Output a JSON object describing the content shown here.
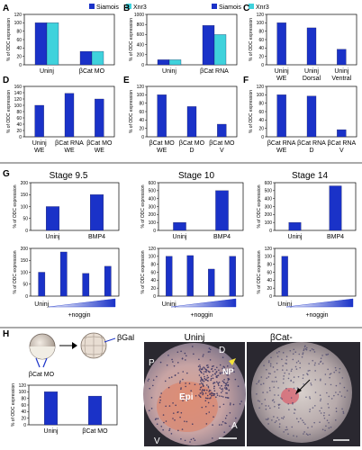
{
  "legend": {
    "siamois": "Siamois",
    "xnr3": "Xnr3",
    "color_siamois": "#1a32c8",
    "color_xnr3": "#3fd2dc"
  },
  "ylabel": "% of ODC expression",
  "ylabel_h": "% of ODC expression",
  "chart_data": [
    {
      "id": "A",
      "type": "bar",
      "title": "A",
      "ylabel": "% of ODC expression",
      "ylim": [
        0,
        120
      ],
      "yticks": [
        0,
        20,
        40,
        60,
        80,
        100,
        120
      ],
      "categories": [
        "Uninj",
        "βCat MO"
      ],
      "series": [
        {
          "name": "Siamois",
          "values": [
            100,
            32
          ]
        },
        {
          "name": "Xnr3",
          "values": [
            100,
            32
          ]
        }
      ]
    },
    {
      "id": "B",
      "type": "bar",
      "title": "B",
      "ylabel": "% of ODC expression",
      "ylim": [
        0,
        1000
      ],
      "yticks": [
        0,
        200,
        400,
        600,
        800,
        1000
      ],
      "categories": [
        "Uninj",
        "βCat RNA"
      ],
      "series": [
        {
          "name": "Siamois",
          "values": [
            100,
            780
          ]
        },
        {
          "name": "Xnr3",
          "values": [
            100,
            600
          ]
        }
      ]
    },
    {
      "id": "C",
      "type": "bar",
      "title": "C",
      "ylabel": "% of ODC expression",
      "ylim": [
        0,
        120
      ],
      "yticks": [
        0,
        20,
        40,
        60,
        80,
        100,
        120
      ],
      "categories": [
        "Uninj WE",
        "Uninj Dorsal",
        "Uninj Ventral"
      ],
      "series": [
        {
          "values": [
            100,
            88,
            37
          ]
        }
      ]
    },
    {
      "id": "D",
      "type": "bar",
      "title": "D",
      "ylabel": "% of ODC expression",
      "ylim": [
        0,
        160
      ],
      "yticks": [
        0,
        20,
        40,
        60,
        80,
        100,
        120,
        140,
        160
      ],
      "categories": [
        "Uninj WE",
        "βCat RNA WE",
        "βCat MO WE"
      ],
      "series": [
        {
          "values": [
            100,
            138,
            120
          ]
        }
      ]
    },
    {
      "id": "E",
      "type": "bar",
      "title": "E",
      "ylabel": "% of ODC expression",
      "ylim": [
        0,
        120
      ],
      "yticks": [
        0,
        20,
        40,
        60,
        80,
        100,
        120
      ],
      "categories": [
        "βCat MO WE",
        "βCat MO D",
        "βCat MO V"
      ],
      "series": [
        {
          "values": [
            100,
            72,
            30
          ]
        }
      ]
    },
    {
      "id": "F",
      "type": "bar",
      "title": "F",
      "ylabel": "% of ODC expression",
      "ylim": [
        0,
        120
      ],
      "yticks": [
        0,
        20,
        40,
        60,
        80,
        100,
        120
      ],
      "categories": [
        "βCat RNA WE",
        "βCat RNA D",
        "βCat RNA V"
      ],
      "series": [
        {
          "values": [
            100,
            97,
            17
          ]
        }
      ]
    },
    {
      "id": "G1",
      "type": "bar",
      "title": "Stage 9.5",
      "ylabel": "% of ODC expression",
      "ylim": [
        0,
        200
      ],
      "yticks": [
        0,
        50,
        100,
        150,
        200
      ],
      "categories": [
        "Uninj",
        "BMP4"
      ],
      "series": [
        {
          "values": [
            100,
            150
          ]
        }
      ]
    },
    {
      "id": "G2",
      "type": "bar",
      "title": "Stage 10",
      "ylabel": "% of ODC expression",
      "ylim": [
        0,
        600
      ],
      "yticks": [
        0,
        100,
        200,
        300,
        400,
        500,
        600
      ],
      "categories": [
        "Uninj",
        "BMP4"
      ],
      "series": [
        {
          "values": [
            100,
            500
          ]
        }
      ]
    },
    {
      "id": "G3",
      "type": "bar",
      "title": "Stage 14",
      "ylabel": "% of ODC expression",
      "ylim": [
        0,
        600
      ],
      "yticks": [
        0,
        100,
        200,
        300,
        400,
        500,
        600
      ],
      "categories": [
        "Uninj",
        "BMP4"
      ],
      "series": [
        {
          "values": [
            100,
            560
          ]
        }
      ]
    },
    {
      "id": "G4",
      "type": "bar",
      "ylabel": "% of ODC expression",
      "ylim": [
        0,
        200
      ],
      "yticks": [
        0,
        50,
        100,
        150,
        200
      ],
      "categories": [
        "Uninj",
        "+noggin",
        "",
        ""
      ],
      "series": [
        {
          "values": [
            100,
            185,
            95,
            125
          ]
        }
      ]
    },
    {
      "id": "G5",
      "type": "bar",
      "ylabel": "% of ODC expression",
      "ylim": [
        0,
        120
      ],
      "yticks": [
        0,
        20,
        40,
        60,
        80,
        100,
        120
      ],
      "categories": [
        "Uninj",
        "+noggin",
        "",
        ""
      ],
      "series": [
        {
          "values": [
            100,
            102,
            68,
            100
          ]
        }
      ]
    },
    {
      "id": "G6",
      "type": "bar",
      "ylabel": "% of ODC expression",
      "ylim": [
        0,
        120
      ],
      "yticks": [
        0,
        20,
        40,
        60,
        80,
        100,
        120
      ],
      "categories": [
        "Uninj",
        "+noggin",
        "",
        ""
      ],
      "series": [
        {
          "values": [
            100,
            0,
            0,
            0
          ]
        }
      ]
    },
    {
      "id": "H",
      "type": "bar",
      "ylabel": "% of ODC expression",
      "ylim": [
        0,
        120
      ],
      "yticks": [
        0,
        20,
        40,
        60,
        80,
        100,
        120
      ],
      "categories": [
        "Uninj",
        "βCat MO"
      ],
      "series": [
        {
          "values": [
            100,
            87
          ]
        }
      ]
    }
  ],
  "panel_labels": {
    "A": "A",
    "B": "B",
    "C": "C",
    "D": "D",
    "E": "E",
    "F": "F",
    "G": "G",
    "H": "H"
  },
  "g_stages": [
    "Stage 9.5",
    "Stage 10",
    "Stage 14"
  ],
  "noggin_label": "+noggin",
  "h_schematic": {
    "bcat_mo": "βCat MO",
    "bgal": "βGal"
  },
  "h_images": {
    "left_title": "Uninj",
    "right_title": "βCat-",
    "labels": {
      "P": "P",
      "D": "D",
      "NP": "NP",
      "Epi": "Epi",
      "V": "V",
      "A": "A"
    }
  }
}
